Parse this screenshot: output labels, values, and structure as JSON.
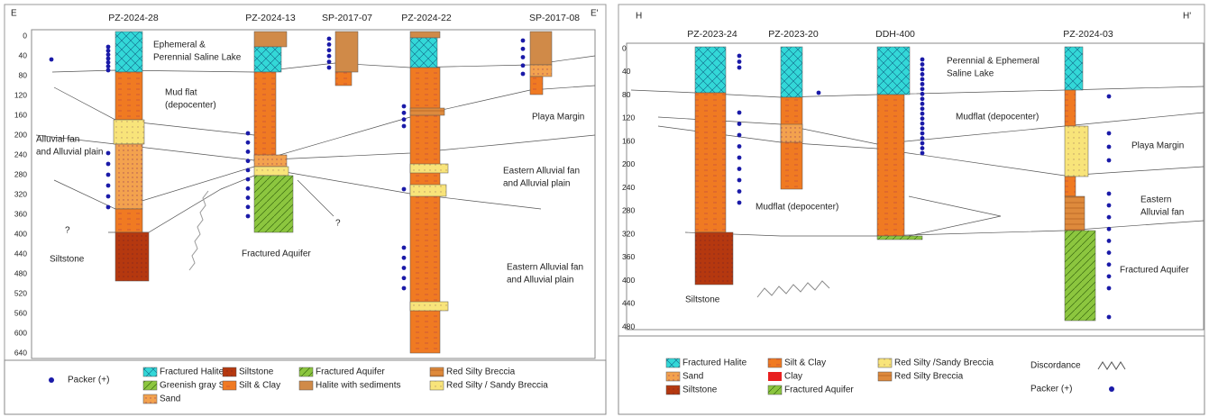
{
  "panels": [
    {
      "start": "E",
      "end": "E'",
      "wells": [
        "PZ-2024-28",
        "PZ-2024-13",
        "SP-2017-07",
        "PZ-2024-22",
        "SP-2017-08"
      ],
      "depth_ticks": [
        0,
        40,
        80,
        120,
        160,
        200,
        240,
        280,
        320,
        360,
        400,
        440,
        480,
        520,
        560,
        600,
        640
      ],
      "labels": [
        [
          "Ephemeral &",
          "Perennial Saline Lake"
        ],
        [
          "Mud flat",
          "(depocenter)"
        ],
        [
          "Alluvial fan",
          "and Alluvial plain"
        ],
        [
          "Playa Margin"
        ],
        [
          "Eastern Alluvial fan",
          "and Alluvial plain"
        ],
        [
          "Siltstone"
        ],
        [
          "Fractured Aquifer"
        ],
        [
          "Eastern Alluvial fan",
          "and Alluvial plain"
        ],
        [
          "?"
        ],
        [
          "?"
        ]
      ],
      "legend": [
        "Packer (+)",
        "Fractured Halite",
        "Greenish gray Silt",
        "Sand",
        "Siltstone",
        "Silt & Clay",
        "Fractured Aquifer",
        "Halite with sediments",
        "Red Silty Breccia",
        "Red Silty / Sandy Breccia"
      ]
    },
    {
      "start": "H",
      "end": "H'",
      "wells": [
        "PZ-2023-24",
        "PZ-2023-20",
        "DDH-400",
        "PZ-2024-03"
      ],
      "depth_ticks": [
        0,
        40,
        80,
        120,
        160,
        200,
        240,
        280,
        320,
        360,
        400,
        440,
        480
      ],
      "labels": [
        [
          "Perennial & Ephemeral",
          "Saline Lake"
        ],
        [
          "Mudflat (depocenter)"
        ],
        [
          "Playa Margin"
        ],
        [
          "Eastern",
          "Alluvial fan"
        ],
        [
          "Mudflat (depocenter)"
        ],
        [
          "Siltstone"
        ],
        [
          "Fractured Aquifer"
        ]
      ],
      "legend": [
        "Fractured Halite",
        "Sand",
        "Siltstone",
        "Silt & Clay",
        "Clay",
        "Fractured Aquifer",
        "Red Silty /Sandy Breccia",
        "Red Silty Breccia",
        "Discordance",
        "Packer (+)"
      ]
    }
  ]
}
